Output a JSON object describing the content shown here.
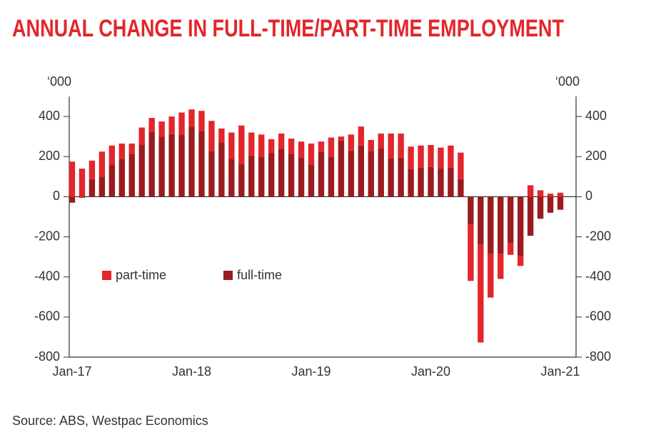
{
  "chart_data": {
    "type": "stacked_bar",
    "title": "ANNUAL CHANGE IN FULL-TIME/PART-TIME EMPLOYMENT",
    "source": "Source: ABS, Westpac Economics",
    "y_unit": "‘000",
    "y2_unit": "‘000",
    "categories": [
      "Jan-17",
      null,
      null,
      null,
      null,
      null,
      null,
      null,
      null,
      null,
      null,
      null,
      "Jan-18",
      null,
      null,
      null,
      null,
      null,
      null,
      null,
      null,
      null,
      null,
      null,
      "Jan-19",
      null,
      null,
      null,
      null,
      null,
      null,
      null,
      null,
      null,
      null,
      null,
      "Jan-20",
      null,
      null,
      null,
      null,
      null,
      null,
      null,
      null,
      null,
      null,
      null,
      null,
      "Jan-21"
    ],
    "series": [
      {
        "name": "full-time",
        "color": "#9b1b1e",
        "values": [
          -30,
          -5,
          88,
          100,
          160,
          188,
          213,
          260,
          323,
          300,
          312,
          310,
          350,
          328,
          228,
          270,
          188,
          163,
          205,
          200,
          220,
          238,
          213,
          195,
          160,
          223,
          200,
          280,
          230,
          255,
          228,
          240,
          190,
          195,
          138,
          145,
          148,
          140,
          145,
          88,
          -140,
          -240,
          -285,
          -285,
          -230,
          -295,
          -195,
          -110,
          -80,
          -65
        ]
      },
      {
        "name": "part-time",
        "color": "#e2262b",
        "values": [
          175,
          140,
          92,
          125,
          95,
          77,
          52,
          85,
          70,
          75,
          88,
          110,
          85,
          100,
          150,
          70,
          132,
          192,
          115,
          110,
          67,
          77,
          77,
          80,
          105,
          52,
          95,
          20,
          80,
          95,
          55,
          75,
          125,
          120,
          112,
          110,
          110,
          105,
          110,
          132,
          -280,
          -487,
          -218,
          -125,
          -60,
          -50,
          57,
          32,
          15,
          20
        ]
      }
    ],
    "ylim": [
      -800,
      500
    ],
    "yticks": [
      -800,
      -600,
      -400,
      -200,
      0,
      200,
      400
    ],
    "y2lim": [
      -800,
      500
    ],
    "y2ticks": [
      -800,
      -600,
      -400,
      -200,
      0,
      200,
      400
    ],
    "legend": "inside-left"
  }
}
